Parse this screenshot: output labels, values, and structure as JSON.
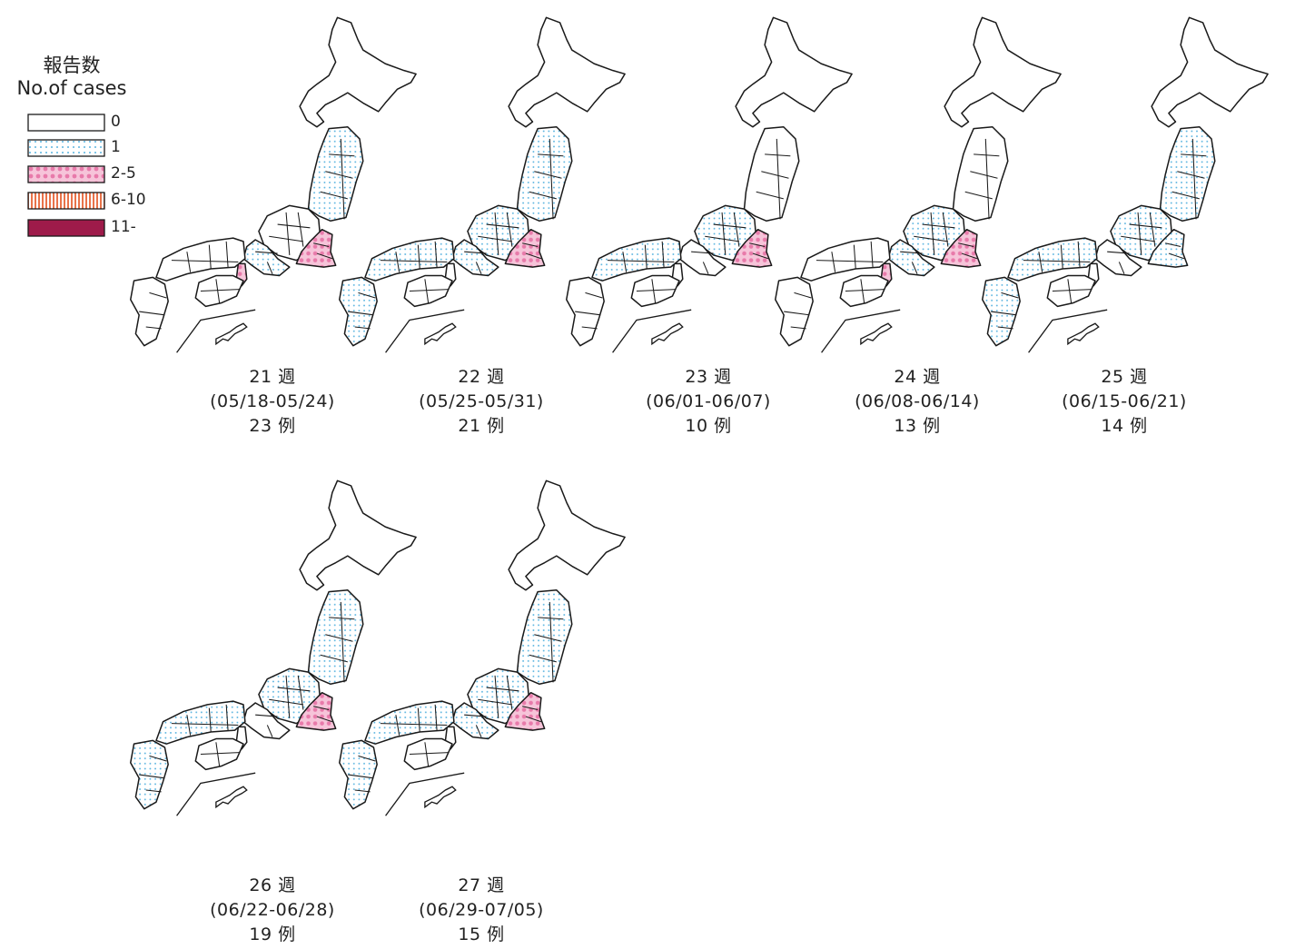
{
  "legend": {
    "title_ja": "報告数",
    "title_en": "No.of cases",
    "items": [
      {
        "label": "0",
        "fill": "white"
      },
      {
        "label": "1",
        "fill": "dots"
      },
      {
        "label": "2-5",
        "fill": "pink"
      },
      {
        "label": "6-10",
        "fill": "stripes"
      },
      {
        "label": "11-",
        "fill": "crimson"
      }
    ]
  },
  "colors": {
    "outline": "#1a1a1a",
    "dot_blue": "#5ab4e0",
    "pink": "#e87aaa",
    "pink_light": "#f6c4d9",
    "orange_stripe": "#e8734a",
    "crimson": "#9e1b4a"
  },
  "maps": [
    {
      "week": "21 週",
      "range": "(05/18-05/24)",
      "count": "23 例",
      "regions": {
        "tohoku": "dots",
        "chubu": "white",
        "kanto": "pink",
        "kansai": "dots",
        "kinki_west": "pink",
        "chugoku": "white",
        "shikoku": "white",
        "kyushu": "white"
      }
    },
    {
      "week": "22 週",
      "range": "(05/25-05/31)",
      "count": "21 例",
      "regions": {
        "tohoku": "dots",
        "chubu": "dots",
        "kanto": "pink",
        "kansai": "dots",
        "kinki_west": "white",
        "chugoku": "dots",
        "shikoku": "white",
        "kyushu": "dots"
      }
    },
    {
      "week": "23 週",
      "range": "(06/01-06/07)",
      "count": "10 例",
      "regions": {
        "tohoku": "white",
        "chubu": "dots",
        "kanto": "pink",
        "kansai": "white",
        "kinki_west": "white",
        "chugoku": "dots",
        "shikoku": "white",
        "kyushu": "white"
      }
    },
    {
      "week": "24 週",
      "range": "(06/08-06/14)",
      "count": "13 例",
      "regions": {
        "tohoku": "white",
        "chubu": "dots",
        "kanto": "pink",
        "kansai": "dots",
        "kinki_west": "pink",
        "chugoku": "white",
        "shikoku": "white",
        "kyushu": "white"
      }
    },
    {
      "week": "25 週",
      "range": "(06/15-06/21)",
      "count": "14 例",
      "regions": {
        "tohoku": "dots",
        "chubu": "dots",
        "kanto": "dots",
        "kansai": "white",
        "kinki_west": "white",
        "chugoku": "dots",
        "shikoku": "white",
        "kyushu": "dots"
      }
    },
    {
      "week": "26 週",
      "range": "(06/22-06/28)",
      "count": "19 例",
      "regions": {
        "tohoku": "dots",
        "chubu": "dots",
        "kanto": "pink",
        "kansai": "white",
        "kinki_west": "white",
        "chugoku": "dots",
        "shikoku": "white",
        "kyushu": "dots"
      }
    },
    {
      "week": "27 週",
      "range": "(06/29-07/05)",
      "count": "15 例",
      "regions": {
        "tohoku": "dots",
        "chubu": "dots",
        "kanto": "pink",
        "kansai": "dots",
        "kinki_west": "white",
        "chugoku": "dots",
        "shikoku": "white",
        "kyushu": "dots"
      }
    }
  ]
}
